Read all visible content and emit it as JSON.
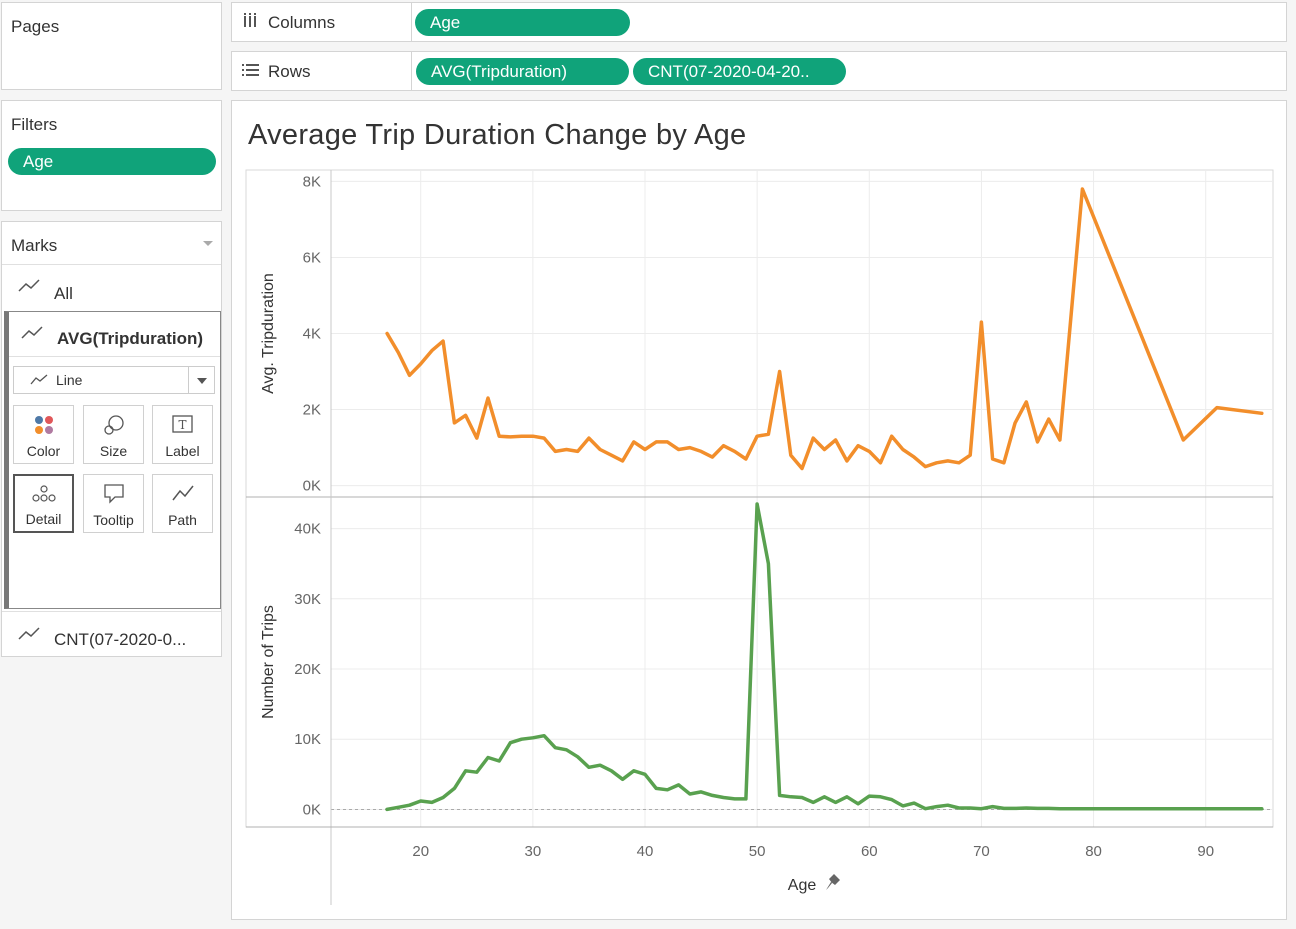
{
  "pages": {
    "title": "Pages"
  },
  "filters": {
    "title": "Filters",
    "pill": "Age"
  },
  "marks": {
    "title": "Marks",
    "all_label": "All",
    "active_label": "AVG(Tripduration)",
    "mark_type": "Line",
    "cards": [
      {
        "label": "Color",
        "icon": "color-dots-icon"
      },
      {
        "label": "Size",
        "icon": "size-circles-icon"
      },
      {
        "label": "Label",
        "icon": "label-t-icon"
      },
      {
        "label": "Detail",
        "icon": "detail-dots-icon"
      },
      {
        "label": "Tooltip",
        "icon": "tooltip-bubble-icon"
      },
      {
        "label": "Path",
        "icon": "path-line-icon"
      }
    ],
    "second_label": "CNT(07-2020-0..."
  },
  "shelves": {
    "columns_label": "Columns",
    "columns_pill": "Age",
    "rows_label": "Rows",
    "rows_pills": [
      "AVG(Tripduration)",
      "CNT(07-2020-04-20.."
    ]
  },
  "chart_data": {
    "type": "line",
    "title": "Average Trip Duration Change by Age",
    "xlabel": "Age",
    "xlim": [
      12,
      96
    ],
    "x_ticks": [
      "20",
      "30",
      "40",
      "50",
      "60",
      "70",
      "80",
      "90"
    ],
    "panes": [
      {
        "name": "Avg. Tripduration",
        "ylabel": "Avg. Tripduration",
        "ylim": [
          -300,
          8300
        ],
        "y_ticks": [
          "0K",
          "2K",
          "4K",
          "6K",
          "8K"
        ],
        "color": "#f28e2b",
        "x": [
          17,
          18,
          19,
          20,
          21,
          22,
          23,
          24,
          25,
          26,
          27,
          28,
          29,
          30,
          31,
          32,
          33,
          34,
          35,
          36,
          37,
          38,
          39,
          40,
          41,
          42,
          43,
          44,
          45,
          46,
          47,
          48,
          49,
          50,
          51,
          52,
          53,
          54,
          55,
          56,
          57,
          58,
          59,
          60,
          61,
          62,
          63,
          64,
          65,
          66,
          67,
          68,
          69,
          70,
          71,
          72,
          73,
          74,
          75,
          76,
          77,
          79,
          88,
          91,
          95
        ],
        "values": [
          4000,
          3500,
          2900,
          3200,
          3550,
          3800,
          1650,
          1850,
          1250,
          2300,
          1300,
          1280,
          1300,
          1300,
          1250,
          900,
          950,
          900,
          1250,
          950,
          800,
          650,
          1150,
          950,
          1150,
          1150,
          950,
          1000,
          900,
          750,
          1050,
          900,
          700,
          1300,
          1350,
          3000,
          800,
          450,
          1250,
          950,
          1200,
          650,
          1050,
          900,
          600,
          1300,
          950,
          750,
          500,
          600,
          650,
          600,
          800,
          4300,
          700,
          600,
          1650,
          2200,
          1150,
          1750,
          1200,
          7800,
          1200,
          2050,
          1900
        ]
      },
      {
        "name": "Number of Trips",
        "ylabel": "Number of Trips",
        "ylim": [
          -2500,
          44500
        ],
        "y_ticks": [
          "0K",
          "10K",
          "20K",
          "30K",
          "40K"
        ],
        "color": "#59a14f",
        "x": [
          17,
          18,
          19,
          20,
          21,
          22,
          23,
          24,
          25,
          26,
          27,
          28,
          29,
          30,
          31,
          32,
          33,
          34,
          35,
          36,
          37,
          38,
          39,
          40,
          41,
          42,
          43,
          44,
          45,
          46,
          47,
          48,
          49,
          50,
          51,
          52,
          53,
          54,
          55,
          56,
          57,
          58,
          59,
          60,
          61,
          62,
          63,
          64,
          65,
          66,
          67,
          68,
          69,
          70,
          71,
          72,
          73,
          74,
          75,
          76,
          77,
          78,
          80,
          85,
          90,
          95
        ],
        "values": [
          0,
          300,
          600,
          1200,
          1000,
          1700,
          3000,
          5500,
          5300,
          7400,
          6900,
          9500,
          10000,
          10200,
          10500,
          8800,
          8500,
          7500,
          6000,
          6300,
          5500,
          4300,
          5500,
          5000,
          3000,
          2800,
          3500,
          2200,
          2500,
          2000,
          1700,
          1500,
          1500,
          43500,
          35000,
          2000,
          1800,
          1700,
          1000,
          1800,
          1000,
          1800,
          800,
          1900,
          1800,
          1400,
          500,
          900,
          100,
          400,
          600,
          200,
          200,
          100,
          400,
          150,
          150,
          200,
          150,
          150,
          100,
          100,
          100,
          100,
          100,
          100
        ]
      }
    ]
  }
}
